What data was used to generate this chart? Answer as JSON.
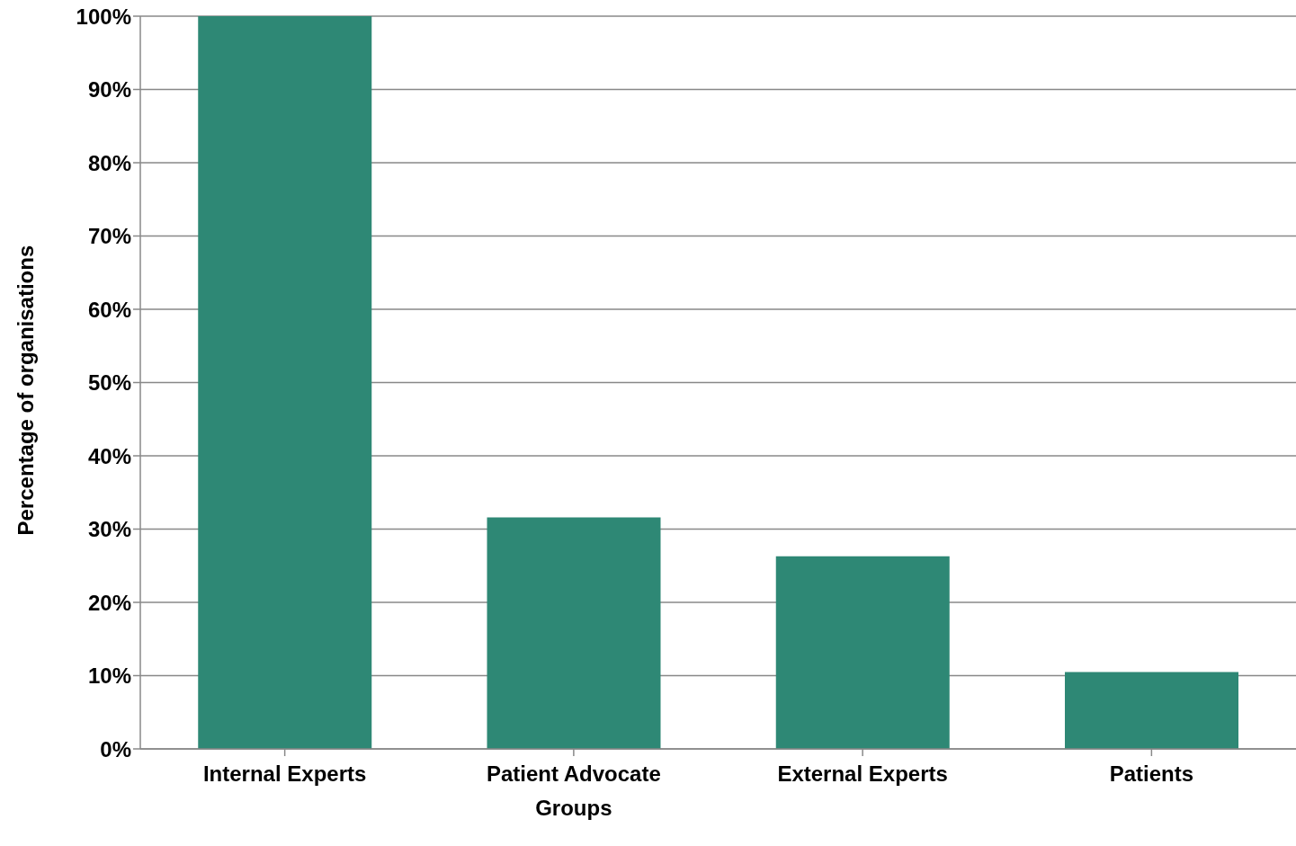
{
  "chart_data": {
    "type": "bar",
    "ylabel": "Percentage of organisations",
    "categories": [
      "Internal Experts",
      "Patient Advocate Groups",
      "External Experts",
      "Patients"
    ],
    "values": [
      100,
      31.6,
      26.3,
      10.5
    ],
    "color": "#2e8875",
    "ylim": [
      0,
      100
    ],
    "yticks": [
      {
        "value": 0,
        "label": "0%"
      },
      {
        "value": 10,
        "label": "10%"
      },
      {
        "value": 20,
        "label": "20%"
      },
      {
        "value": 30,
        "label": "30%"
      },
      {
        "value": 40,
        "label": "40%"
      },
      {
        "value": 50,
        "label": "50%"
      },
      {
        "value": 60,
        "label": "60%"
      },
      {
        "value": 70,
        "label": "70%"
      },
      {
        "value": 80,
        "label": "80%"
      },
      {
        "value": 90,
        "label": "90%"
      },
      {
        "value": 100,
        "label": "100%"
      }
    ],
    "grid": "y",
    "legend": false
  }
}
